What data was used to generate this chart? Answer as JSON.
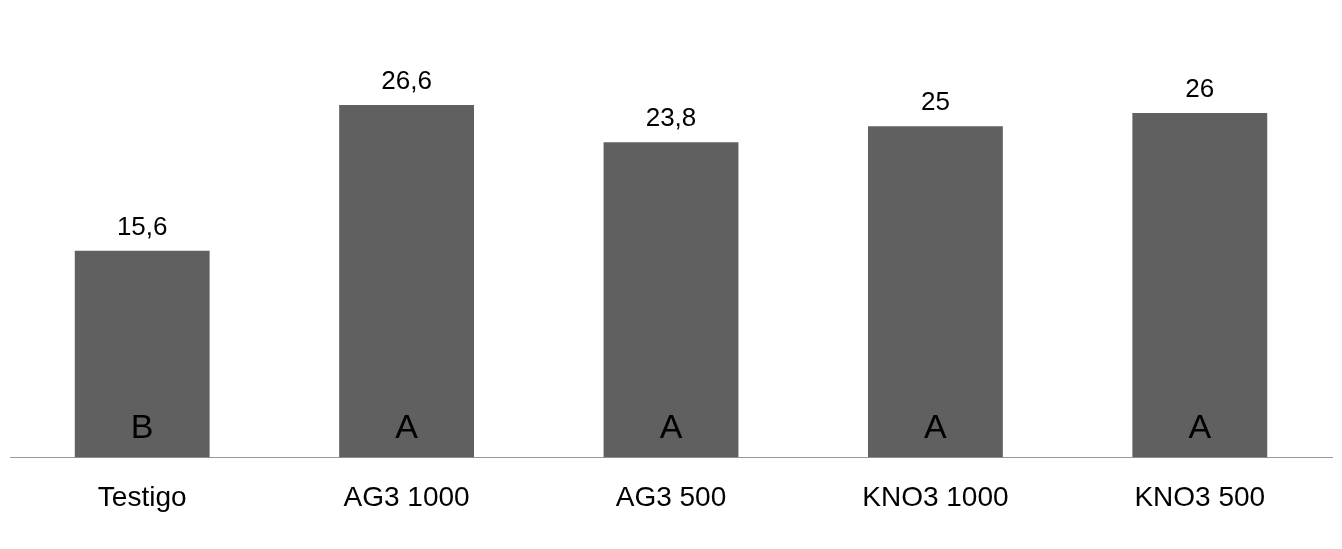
{
  "chart_data": {
    "type": "bar",
    "categories": [
      "Testigo",
      "AG3 1000",
      "AG3 500",
      "KNO3 1000",
      "KNO3 500"
    ],
    "values": [
      15.6,
      26.6,
      23.8,
      25,
      26
    ],
    "value_labels": [
      "15,6",
      "26,6",
      "23,8",
      "25",
      "26"
    ],
    "color": "#606060",
    "annotations": [
      "B",
      "A",
      "A",
      "A",
      "A"
    ],
    "grid": false,
    "legend": false
  }
}
